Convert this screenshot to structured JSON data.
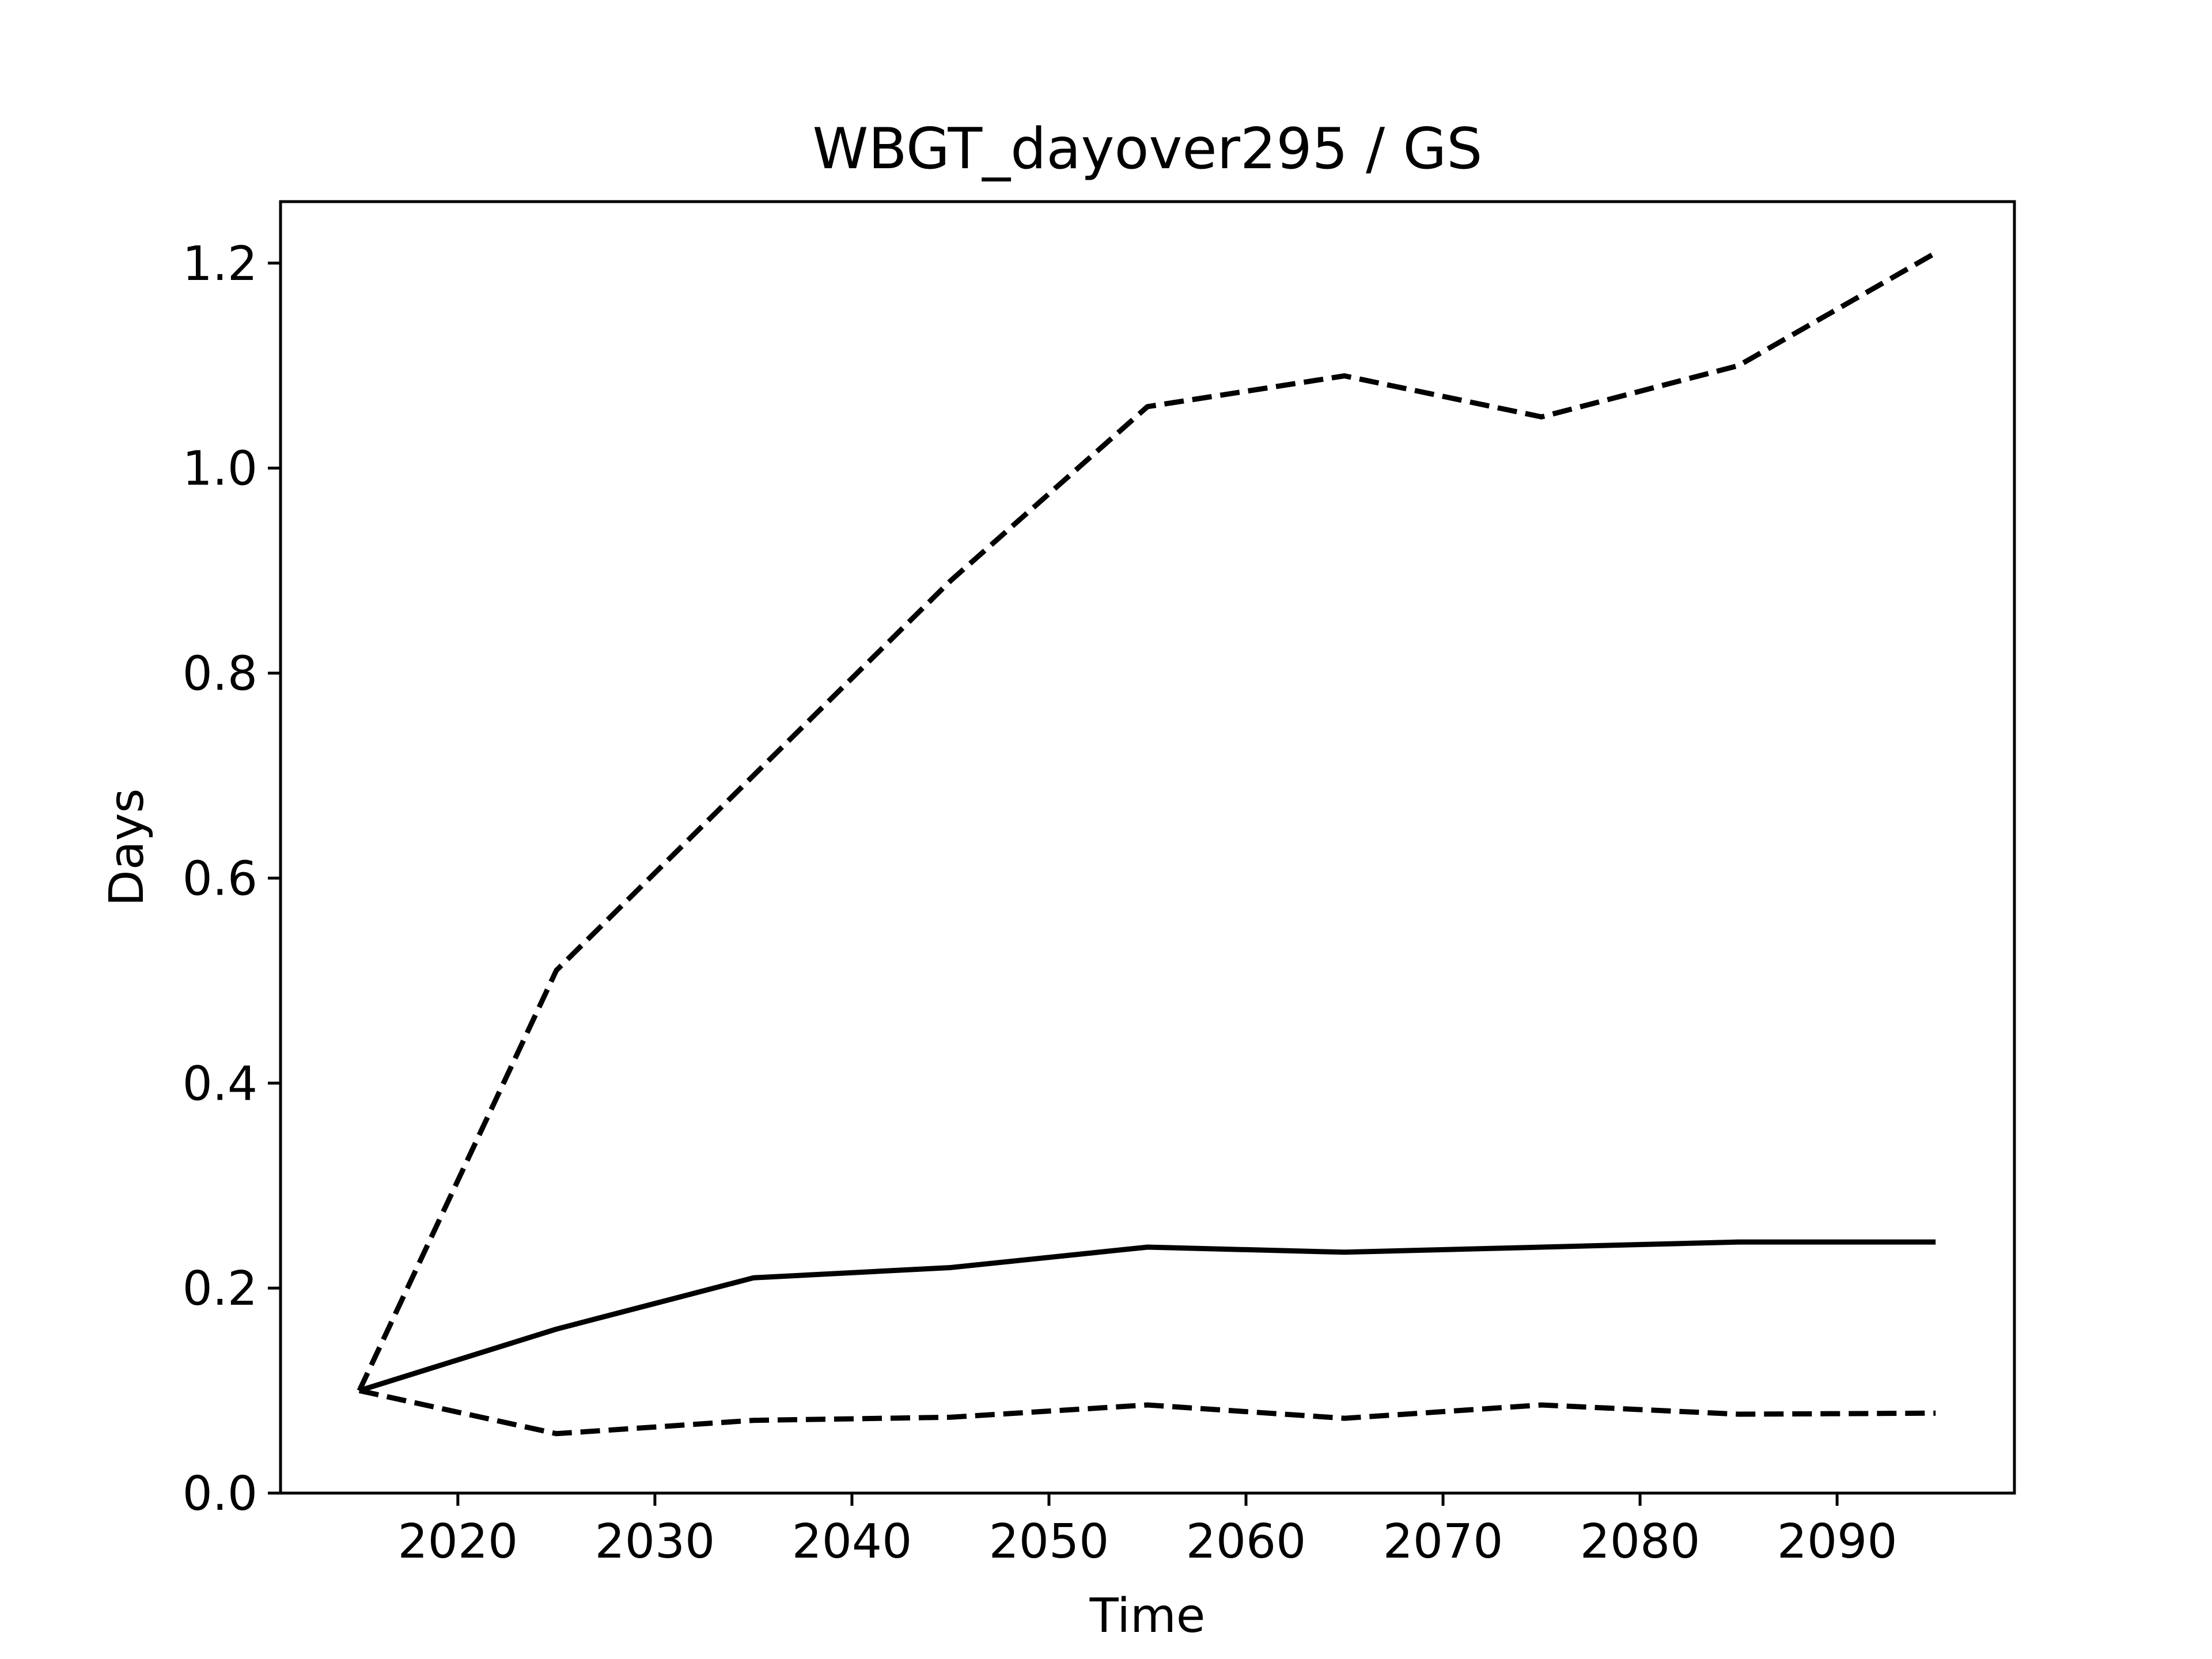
{
  "chart_data": {
    "type": "line",
    "title": "WBGT_dayover295 / GS",
    "xlabel": "Time",
    "ylabel": "Days",
    "xlim": [
      2011,
      2099
    ],
    "ylim": [
      0.0,
      1.26
    ],
    "xticks": [
      2020,
      2030,
      2040,
      2050,
      2060,
      2070,
      2080,
      2090
    ],
    "xtick_labels": [
      "2020",
      "2030",
      "2040",
      "2050",
      "2060",
      "2070",
      "2080",
      "2090"
    ],
    "yticks": [
      0.0,
      0.2,
      0.4,
      0.6,
      0.8,
      1.0,
      1.2
    ],
    "ytick_labels": [
      "0.0",
      "0.2",
      "0.4",
      "0.6",
      "0.8",
      "1.0",
      "1.2"
    ],
    "grid": false,
    "legend": false,
    "x": [
      2015,
      2025,
      2035,
      2045,
      2055,
      2065,
      2075,
      2085,
      2095
    ],
    "series": [
      {
        "style": "dashed",
        "color": "#000000",
        "values": [
          0.1,
          0.51,
          0.7,
          0.89,
          1.06,
          1.09,
          1.05,
          1.1,
          1.21
        ]
      },
      {
        "style": "solid",
        "color": "#000000",
        "values": [
          0.1,
          0.16,
          0.21,
          0.22,
          0.24,
          0.235,
          0.24,
          0.245,
          0.245
        ]
      },
      {
        "style": "dashed",
        "color": "#000000",
        "values": [
          0.1,
          0.058,
          0.071,
          0.074,
          0.086,
          0.073,
          0.086,
          0.077,
          0.078
        ]
      }
    ]
  }
}
